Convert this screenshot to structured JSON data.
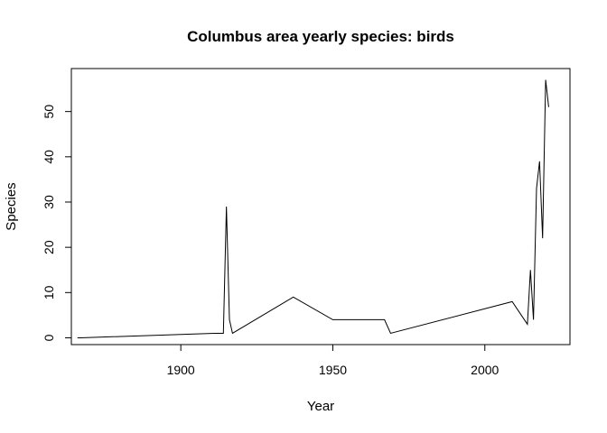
{
  "chart_data": {
    "type": "line",
    "title": "Columbus area yearly species: birds",
    "xlabel": "Year",
    "ylabel": "Species",
    "xlim": [
      1864,
      2028
    ],
    "ylim": [
      -1.5,
      59.5
    ],
    "xticks": [
      1900,
      1950,
      2000
    ],
    "yticks": [
      0,
      10,
      20,
      30,
      40,
      50
    ],
    "x_axis_range": [
      1864,
      2028
    ],
    "grid": false,
    "frame": true,
    "line_color": "#000000",
    "series": [
      {
        "x": [
          1866,
          1867,
          1911,
          1914,
          1915,
          1916,
          1917,
          1937,
          1950,
          1967,
          1969,
          2009,
          2014,
          2015,
          2016,
          2017,
          2018,
          2019,
          2020,
          2021
        ],
        "y": [
          0,
          0,
          1,
          1,
          29,
          4,
          1,
          9,
          4,
          4,
          1,
          8,
          3,
          15,
          4,
          33,
          39,
          22,
          57,
          51
        ]
      }
    ]
  }
}
